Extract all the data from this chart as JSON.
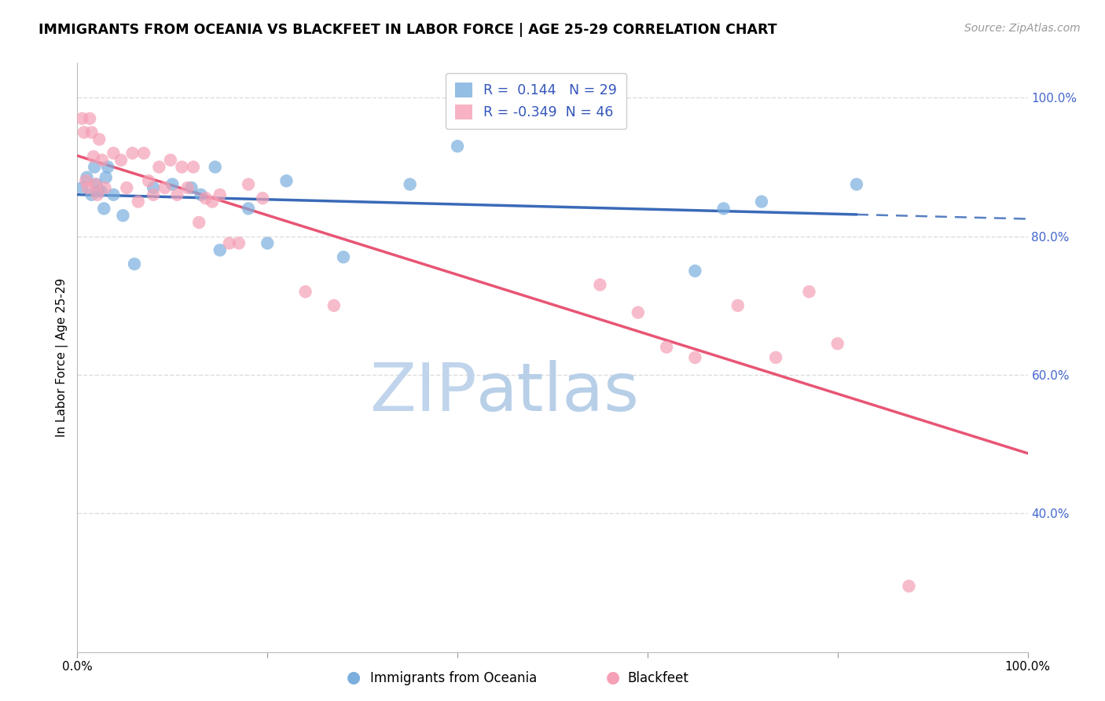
{
  "title": "IMMIGRANTS FROM OCEANIA VS BLACKFEET IN LABOR FORCE | AGE 25-29 CORRELATION CHART",
  "source_text": "Source: ZipAtlas.com",
  "ylabel": "In Labor Force | Age 25-29",
  "xlim": [
    0.0,
    1.0
  ],
  "ylim": [
    0.2,
    1.05
  ],
  "x_ticks": [
    0.0,
    0.2,
    0.4,
    0.6,
    0.8,
    1.0
  ],
  "x_tick_labels": [
    "0.0%",
    "",
    "",
    "",
    "",
    "100.0%"
  ],
  "y_ticks": [
    0.4,
    0.6,
    0.8,
    1.0
  ],
  "y_tick_labels": [
    "40.0%",
    "60.0%",
    "80.0%",
    "100.0%"
  ],
  "oceania_R": 0.144,
  "oceania_N": 29,
  "blackfeet_R": -0.349,
  "blackfeet_N": 46,
  "oceania_color": "#7aaedd",
  "blackfeet_color": "#f5a0b5",
  "trend_oceania_color": "#3a6ab8",
  "trend_blackfeet_color": "#e85575",
  "grid_color": "#dddddd",
  "watermark_zip_color": "#c5d8ee",
  "watermark_atlas_color": "#c5d8ee",
  "oceania_x": [
    0.005,
    0.01,
    0.015,
    0.018,
    0.02,
    0.022,
    0.025,
    0.028,
    0.03,
    0.032,
    0.038,
    0.048,
    0.06,
    0.08,
    0.1,
    0.12,
    0.13,
    0.145,
    0.15,
    0.18,
    0.2,
    0.22,
    0.28,
    0.35,
    0.4,
    0.65,
    0.68,
    0.72,
    0.82
  ],
  "oceania_y": [
    0.87,
    0.885,
    0.86,
    0.9,
    0.875,
    0.865,
    0.865,
    0.84,
    0.885,
    0.9,
    0.86,
    0.83,
    0.76,
    0.87,
    0.875,
    0.87,
    0.86,
    0.9,
    0.78,
    0.84,
    0.79,
    0.88,
    0.77,
    0.875,
    0.93,
    0.75,
    0.84,
    0.85,
    0.875
  ],
  "blackfeet_x": [
    0.005,
    0.007,
    0.009,
    0.011,
    0.013,
    0.015,
    0.017,
    0.019,
    0.021,
    0.023,
    0.026,
    0.029,
    0.038,
    0.046,
    0.052,
    0.058,
    0.064,
    0.07,
    0.075,
    0.08,
    0.086,
    0.092,
    0.098,
    0.105,
    0.11,
    0.116,
    0.122,
    0.128,
    0.135,
    0.142,
    0.15,
    0.16,
    0.17,
    0.18,
    0.195,
    0.24,
    0.27,
    0.55,
    0.59,
    0.62,
    0.65,
    0.695,
    0.735,
    0.77,
    0.8,
    0.875
  ],
  "blackfeet_y": [
    0.97,
    0.95,
    0.88,
    0.87,
    0.97,
    0.95,
    0.915,
    0.875,
    0.86,
    0.94,
    0.91,
    0.87,
    0.92,
    0.91,
    0.87,
    0.92,
    0.85,
    0.92,
    0.88,
    0.86,
    0.9,
    0.87,
    0.91,
    0.86,
    0.9,
    0.87,
    0.9,
    0.82,
    0.855,
    0.85,
    0.86,
    0.79,
    0.79,
    0.875,
    0.855,
    0.72,
    0.7,
    0.73,
    0.69,
    0.64,
    0.625,
    0.7,
    0.625,
    0.72,
    0.645,
    0.295
  ]
}
